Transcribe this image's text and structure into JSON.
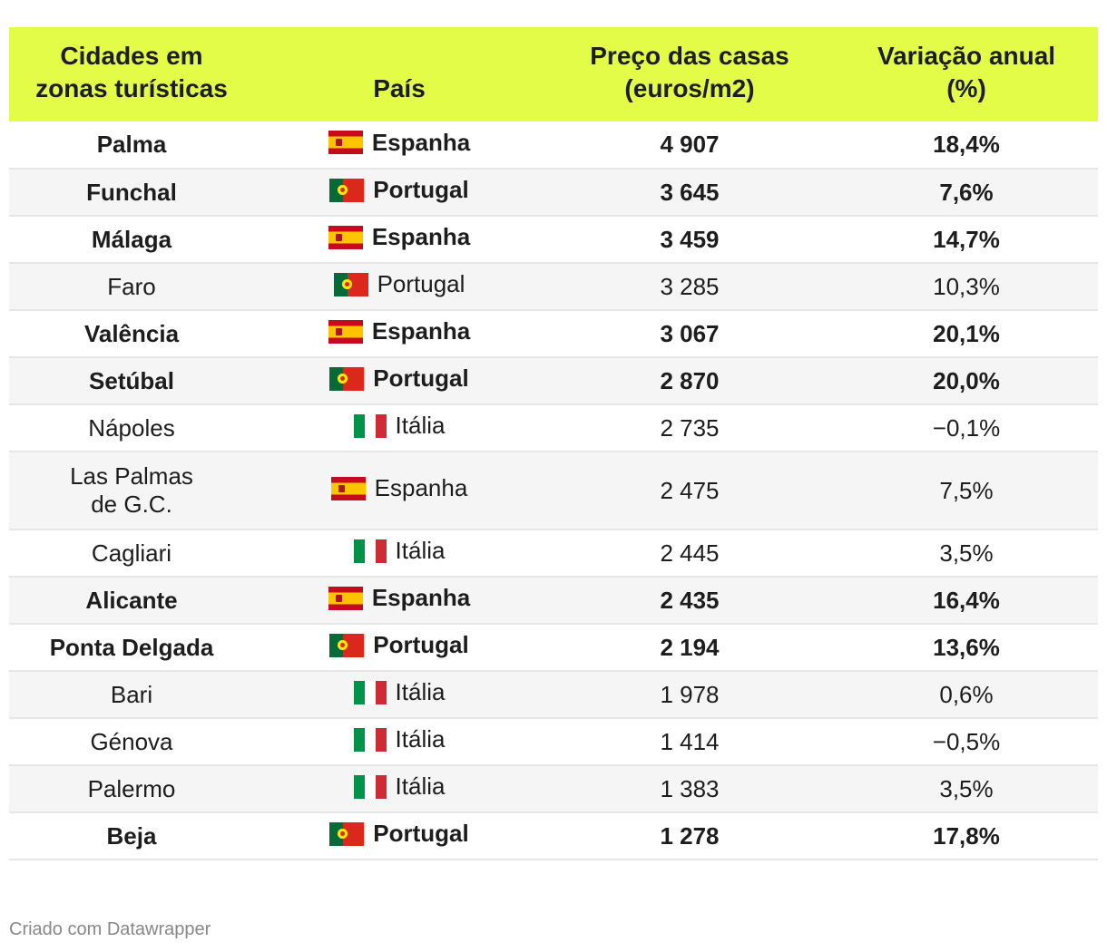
{
  "chart_data": {
    "type": "table",
    "columns": [
      "Cidades em zonas turísticas",
      "País",
      "Preço das casas (euros/m2)",
      "Variação anual (%)"
    ],
    "rows": [
      {
        "city": "Palma",
        "country": "Espanha",
        "flag": "es",
        "price": "4 907",
        "change": "18,4%",
        "bold": true
      },
      {
        "city": "Funchal",
        "country": "Portugal",
        "flag": "pt",
        "price": "3 645",
        "change": "7,6%",
        "bold": true
      },
      {
        "city": "Málaga",
        "country": "Espanha",
        "flag": "es",
        "price": "3 459",
        "change": "14,7%",
        "bold": true
      },
      {
        "city": "Faro",
        "country": "Portugal",
        "flag": "pt",
        "price": "3 285",
        "change": "10,3%",
        "bold": false
      },
      {
        "city": "Valência",
        "country": "Espanha",
        "flag": "es",
        "price": "3 067",
        "change": "20,1%",
        "bold": true
      },
      {
        "city": "Setúbal",
        "country": "Portugal",
        "flag": "pt",
        "price": "2 870",
        "change": "20,0%",
        "bold": true
      },
      {
        "city": "Nápoles",
        "country": "Itália",
        "flag": "it",
        "price": "2 735",
        "change": "−0,1%",
        "bold": false
      },
      {
        "city": "Las Palmas de G.C.",
        "country": "Espanha",
        "flag": "es",
        "price": "2 475",
        "change": "7,5%",
        "bold": false
      },
      {
        "city": "Cagliari",
        "country": "Itália",
        "flag": "it",
        "price": "2 445",
        "change": "3,5%",
        "bold": false
      },
      {
        "city": "Alicante",
        "country": "Espanha",
        "flag": "es",
        "price": "2 435",
        "change": "16,4%",
        "bold": true
      },
      {
        "city": "Ponta Delgada",
        "country": "Portugal",
        "flag": "pt",
        "price": "2 194",
        "change": "13,6%",
        "bold": true
      },
      {
        "city": "Bari",
        "country": "Itália",
        "flag": "it",
        "price": "1 978",
        "change": "0,6%",
        "bold": false
      },
      {
        "city": "Génova",
        "country": "Itália",
        "flag": "it",
        "price": "1 414",
        "change": "−0,5%",
        "bold": false
      },
      {
        "city": "Palermo",
        "country": "Itália",
        "flag": "it",
        "price": "1 383",
        "change": "3,5%",
        "bold": false
      },
      {
        "city": "Beja",
        "country": "Portugal",
        "flag": "pt",
        "price": "1 278",
        "change": "17,8%",
        "bold": true
      }
    ]
  },
  "header": {
    "col1_line1": "Cidades em",
    "col1_line2": "zonas turísticas",
    "col2": "País",
    "col3_line1": "Preço das casas",
    "col3_line2": "(euros/m2)",
    "col4_line1": "Variação anual",
    "col4_line2": "(%)"
  },
  "footer": {
    "credit": "Criado com Datawrapper"
  },
  "colors": {
    "header_bg": "#e3fc47",
    "stripe": "#f5f5f5"
  }
}
